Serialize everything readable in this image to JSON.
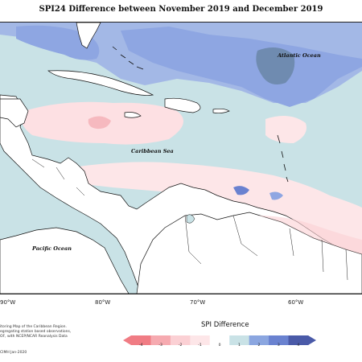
{
  "title": "SPI24 Difference between November 2019 and December 2019",
  "map": {
    "labels": {
      "atlantic": "Atlantic Ocean",
      "caribbean": "Caribbean Sea",
      "pacific": "Pacific Ocean"
    },
    "longitude_ticks": [
      "90°W",
      "80°W",
      "70°W",
      "60°W"
    ]
  },
  "legend": {
    "title": "SPI Difference",
    "ticks": [
      "-4",
      "-3",
      "-2",
      "-1",
      "0",
      "1",
      "2",
      "3",
      "4"
    ],
    "colors": [
      "#f07c84",
      "#f6aab0",
      "#fbd0d4",
      "#fde6e8",
      "#ffffff",
      "#c9e2e6",
      "#8ba6e0",
      "#6a82d0",
      "#4a5aa8"
    ]
  },
  "notes": {
    "line1": "itoring Map of the Caribbean Region.",
    "line2": "egregating station based observations,",
    "line3": "OF, with NCEP/NCAR Reanalysis Data",
    "credit": "CIMH  Jan-2020"
  }
}
